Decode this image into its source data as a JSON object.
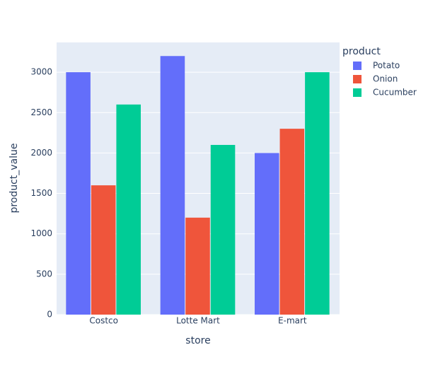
{
  "chart_data": {
    "type": "bar",
    "x_label": "store",
    "y_label": "product_value",
    "legend_title": "product",
    "legend_position": "right",
    "categories": [
      "Costco",
      "Lotte Mart",
      "E-mart"
    ],
    "series": [
      {
        "name": "Potato",
        "color": "#636efa",
        "values": [
          3000,
          3200,
          2000
        ]
      },
      {
        "name": "Onion",
        "color": "#ef553b",
        "values": [
          1600,
          1200,
          2300
        ]
      },
      {
        "name": "Cucumber",
        "color": "#00cc96",
        "values": [
          2600,
          2100,
          3000
        ]
      }
    ],
    "ylim": [
      0,
      3368.42
    ],
    "yticks": [
      0,
      500,
      1000,
      1500,
      2000,
      2500,
      3000
    ],
    "grid": true
  }
}
